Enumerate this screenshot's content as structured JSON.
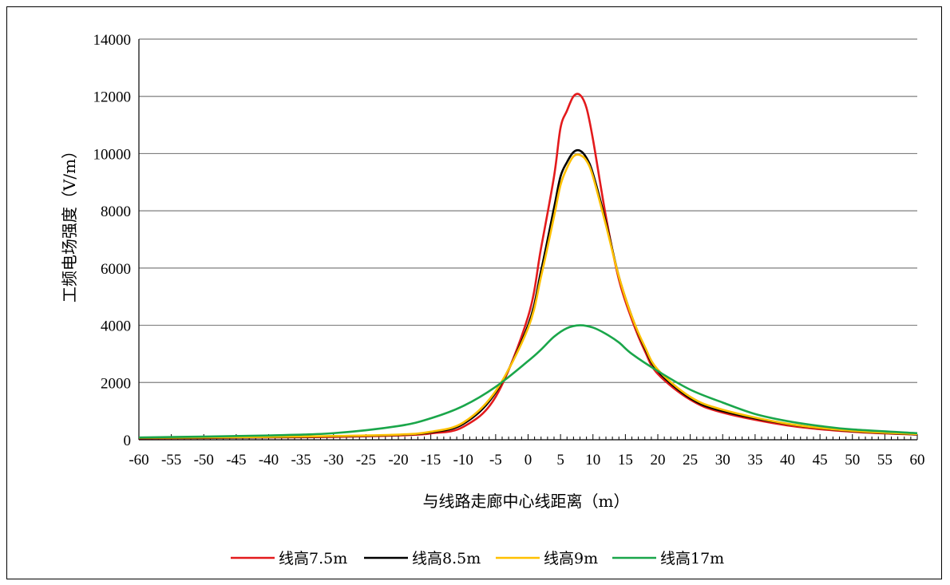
{
  "chart_data": {
    "type": "line",
    "title": "",
    "xlabel": "与线路走廊中心线距离（m）",
    "ylabel": "工频电场强度（V/m）",
    "xlim": [
      -60,
      60
    ],
    "ylim": [
      0,
      14000
    ],
    "x_ticks": [
      -60,
      -55,
      -50,
      -45,
      -40,
      -35,
      -30,
      -25,
      -20,
      -15,
      -10,
      -5,
      0,
      5,
      10,
      15,
      20,
      25,
      30,
      35,
      40,
      45,
      50,
      55,
      60
    ],
    "y_ticks": [
      0,
      2000,
      4000,
      6000,
      8000,
      10000,
      12000,
      14000
    ],
    "grid": "horizontal",
    "legend_position": "bottom",
    "series": [
      {
        "name": "线高7.5m",
        "color": "#e31a1c",
        "x": [
          -60,
          -50,
          -40,
          -30,
          -20,
          -15,
          -10,
          -5,
          0,
          2,
          4,
          5,
          6,
          7,
          8,
          9,
          10,
          12,
          14,
          16,
          18,
          20,
          25,
          30,
          40,
          50,
          60
        ],
        "values": [
          50,
          60,
          80,
          100,
          150,
          220,
          450,
          1500,
          4300,
          6700,
          9200,
          10900,
          11500,
          12000,
          12050,
          11600,
          10500,
          7800,
          5600,
          4200,
          3100,
          2300,
          1400,
          950,
          500,
          280,
          180
        ]
      },
      {
        "name": "线高8.5m",
        "color": "#000000",
        "x": [
          -60,
          -50,
          -40,
          -30,
          -20,
          -15,
          -10,
          -5,
          0,
          2,
          4,
          5,
          6,
          7,
          8,
          9,
          10,
          12,
          14,
          16,
          18,
          20,
          25,
          30,
          40,
          50,
          60
        ],
        "values": [
          60,
          70,
          90,
          120,
          170,
          260,
          550,
          1650,
          4000,
          5900,
          8100,
          9200,
          9700,
          10050,
          10100,
          9850,
          9300,
          7600,
          5700,
          4300,
          3200,
          2400,
          1450,
          1000,
          550,
          300,
          190
        ]
      },
      {
        "name": "线高9m",
        "color": "#ffc000",
        "x": [
          -60,
          -50,
          -40,
          -30,
          -20,
          -15,
          -10,
          -5,
          0,
          2,
          4,
          5,
          6,
          7,
          8,
          9,
          10,
          12,
          14,
          16,
          18,
          20,
          25,
          30,
          40,
          50,
          60
        ],
        "values": [
          70,
          80,
          100,
          130,
          180,
          280,
          600,
          1700,
          3900,
          5700,
          7800,
          8900,
          9500,
          9900,
          9950,
          9750,
          9200,
          7500,
          5700,
          4300,
          3250,
          2450,
          1500,
          1050,
          560,
          310,
          200
        ]
      },
      {
        "name": "线高17m",
        "color": "#1aa64a",
        "x": [
          -60,
          -50,
          -40,
          -30,
          -20,
          -15,
          -10,
          -5,
          0,
          2,
          4,
          6,
          8,
          10,
          12,
          14,
          16,
          20,
          25,
          30,
          35,
          40,
          45,
          50,
          60
        ],
        "values": [
          80,
          110,
          150,
          230,
          480,
          750,
          1180,
          1850,
          2750,
          3150,
          3600,
          3900,
          4000,
          3920,
          3700,
          3400,
          3000,
          2400,
          1750,
          1300,
          900,
          650,
          480,
          360,
          230
        ]
      }
    ]
  }
}
